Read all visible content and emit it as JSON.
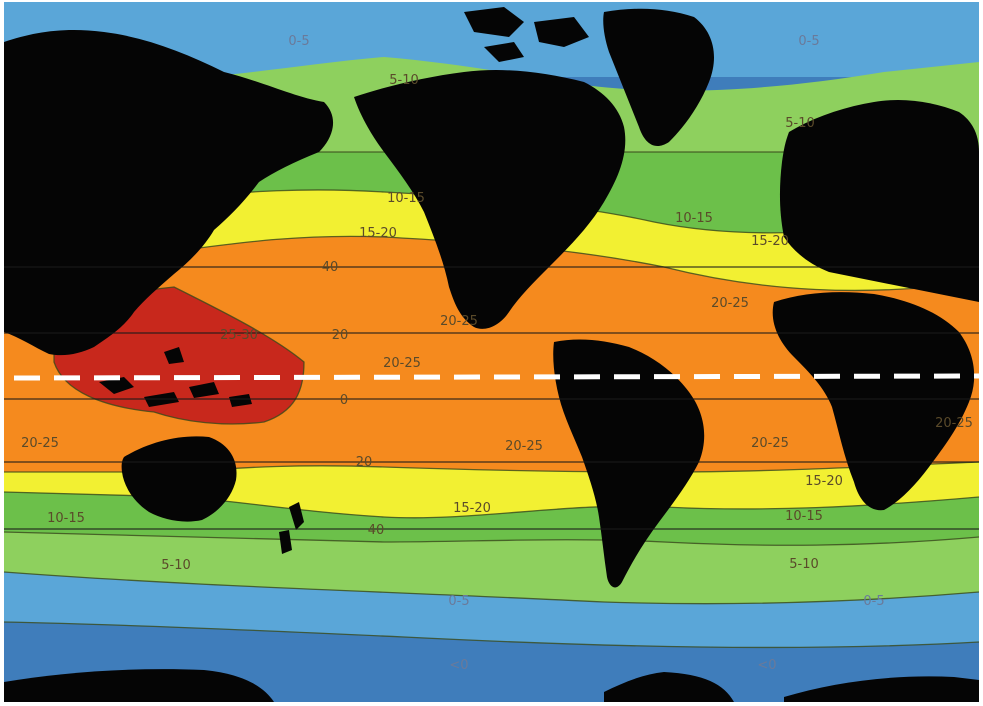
{
  "zones": [
    {
      "id": "polar-north-west",
      "label": "0-5",
      "color": "#5aa6d8"
    },
    {
      "id": "polar-north-east",
      "label": "0-5",
      "color": "#5aa6d8"
    },
    {
      "id": "north-5-10-pacific",
      "label": "5-10",
      "color": "#8ed05e"
    },
    {
      "id": "north-5-10-atlantic",
      "label": "5-10",
      "color": "#8ed05e"
    },
    {
      "id": "north-10-15-pacific",
      "label": "10-15",
      "color": "#6cc04a"
    },
    {
      "id": "north-10-15-atlantic",
      "label": "10-15",
      "color": "#6cc04a"
    },
    {
      "id": "north-15-20-pacific",
      "label": "15-20",
      "color": "#f2f032"
    },
    {
      "id": "north-15-20-atlantic",
      "label": "15-20",
      "color": "#f2f032"
    },
    {
      "id": "north-20-25-pacific",
      "label": "20-25",
      "color": "#f58a1e"
    },
    {
      "id": "north-20-25-atlantic",
      "label": "20-25",
      "color": "#f58a1e"
    },
    {
      "id": "warm-pool-west-pacific",
      "label": "25-30",
      "color": "#c8281c"
    },
    {
      "id": "equatorial-pacific",
      "label": "20-25",
      "color": "#f58a1e"
    },
    {
      "id": "south-20-25-pacific",
      "label": "20-25",
      "color": "#f58a1e"
    },
    {
      "id": "south-20-25-indian",
      "label": "20-25",
      "color": "#f58a1e"
    },
    {
      "id": "south-20-25-atlantic",
      "label": "20-25",
      "color": "#f58a1e"
    },
    {
      "id": "south-20-25-far-east",
      "label": "20-25",
      "color": "#f58a1e"
    },
    {
      "id": "south-15-20-pacific",
      "label": "15-20",
      "color": "#f2f032"
    },
    {
      "id": "south-15-20-atlantic",
      "label": "15-20",
      "color": "#f2f032"
    },
    {
      "id": "south-10-15-indian",
      "label": "10-15",
      "color": "#6cc04a"
    },
    {
      "id": "south-10-15-atlantic",
      "label": "10-15",
      "color": "#6cc04a"
    },
    {
      "id": "south-5-10-pacific",
      "label": "5-10",
      "color": "#8ed05e"
    },
    {
      "id": "south-5-10-atlantic",
      "label": "5-10",
      "color": "#8ed05e"
    },
    {
      "id": "south-0-5-pacific",
      "label": "0-5",
      "color": "#5aa6d8"
    },
    {
      "id": "south-0-5-atlantic",
      "label": "0-5",
      "color": "#5aa6d8"
    },
    {
      "id": "antarctic-west",
      "label": "<0",
      "color": "#3f7dbb"
    },
    {
      "id": "antarctic-east",
      "label": "<0",
      "color": "#3f7dbb"
    }
  ],
  "latitude_marks": [
    {
      "id": "lat-40n",
      "label": "40"
    },
    {
      "id": "lat-20n",
      "label": "20"
    },
    {
      "id": "lat-0",
      "label": "0"
    },
    {
      "id": "lat-20s",
      "label": "20"
    },
    {
      "id": "lat-40s",
      "label": "40"
    }
  ],
  "colors": {
    "land": "#050505",
    "polar_ocean": "#5aa6d8",
    "antarctic_ocean": "#3f7dbb",
    "green_light": "#8ed05e",
    "green": "#6cc04a",
    "yellow": "#f2f032",
    "orange": "#f58a1e",
    "red": "#c8281c",
    "equator_line": "#ffffff",
    "latitude_line": "#1a1a1a"
  },
  "equator": {
    "style": "dashed",
    "color": "#ffffff"
  }
}
